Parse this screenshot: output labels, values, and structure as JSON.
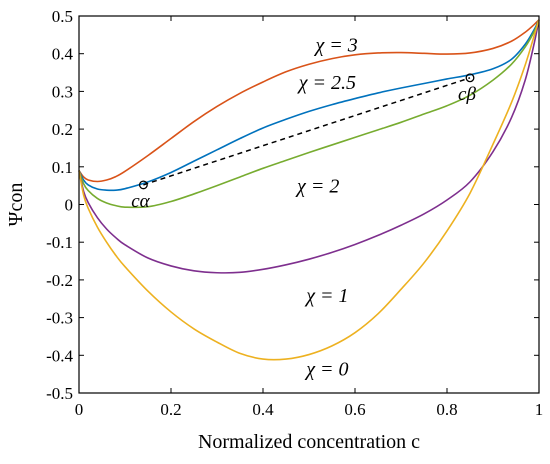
{
  "chart_data": {
    "type": "line",
    "title": "",
    "xlabel": "Normalized concentration c",
    "ylabel": "Ψcon",
    "xlim": [
      0,
      1
    ],
    "ylim": [
      -0.5,
      0.5
    ],
    "xticks": [
      0,
      0.2,
      0.4,
      0.6,
      0.8,
      1
    ],
    "xtick_labels": [
      "0",
      "0.2",
      "0.4",
      "0.6",
      "0.8",
      "1"
    ],
    "yticks": [
      -0.5,
      -0.4,
      -0.3,
      -0.2,
      -0.1,
      0,
      0.1,
      0.2,
      0.3,
      0.4,
      0.5
    ],
    "ytick_labels": [
      "-0.5",
      "-0.4",
      "-0.3",
      "-0.2",
      "-0.1",
      "0",
      "0.1",
      "0.2",
      "0.3",
      "0.4",
      "0.5"
    ],
    "grid": false,
    "series": [
      {
        "label": "χ = 3",
        "color": "#D95319",
        "x": [
          0.0001,
          0.01,
          0.02,
          0.04,
          0.06,
          0.08,
          0.1,
          0.15,
          0.2,
          0.25,
          0.3,
          0.35,
          0.4,
          0.45,
          0.5,
          0.55,
          0.6,
          0.65,
          0.7,
          0.75,
          0.8,
          0.85,
          0.9,
          0.94,
          0.97,
          0.99,
          0.9999
        ],
        "y": [
          0.09,
          0.073,
          0.065,
          0.061,
          0.065,
          0.074,
          0.088,
          0.13,
          0.175,
          0.22,
          0.26,
          0.295,
          0.325,
          0.352,
          0.372,
          0.387,
          0.397,
          0.402,
          0.403,
          0.401,
          0.399,
          0.402,
          0.414,
          0.433,
          0.457,
          0.478,
          0.49
        ]
      },
      {
        "label": "χ = 2.5",
        "color": "#0072BD",
        "x": [
          0.0001,
          0.01,
          0.02,
          0.04,
          0.06,
          0.08,
          0.1,
          0.15,
          0.2,
          0.25,
          0.3,
          0.35,
          0.4,
          0.45,
          0.5,
          0.55,
          0.6,
          0.65,
          0.7,
          0.75,
          0.8,
          0.85,
          0.9,
          0.94,
          0.97,
          0.99,
          0.9999
        ],
        "y": [
          0.09,
          0.065,
          0.052,
          0.041,
          0.038,
          0.038,
          0.042,
          0.06,
          0.085,
          0.115,
          0.145,
          0.175,
          0.203,
          0.226,
          0.247,
          0.265,
          0.281,
          0.296,
          0.309,
          0.321,
          0.333,
          0.344,
          0.36,
          0.385,
          0.425,
          0.465,
          0.49
        ]
      },
      {
        "label": "χ = 2",
        "color": "#77AC30",
        "x": [
          0.0001,
          0.01,
          0.02,
          0.04,
          0.06,
          0.08,
          0.1,
          0.15,
          0.2,
          0.25,
          0.3,
          0.35,
          0.4,
          0.45,
          0.5,
          0.55,
          0.6,
          0.65,
          0.7,
          0.75,
          0.8,
          0.85,
          0.9,
          0.94,
          0.97,
          0.99,
          0.9999
        ],
        "y": [
          0.09,
          0.055,
          0.037,
          0.016,
          0.004,
          -0.003,
          -0.007,
          -0.006,
          0.008,
          0.028,
          0.05,
          0.073,
          0.096,
          0.117,
          0.138,
          0.158,
          0.178,
          0.198,
          0.218,
          0.24,
          0.262,
          0.29,
          0.33,
          0.372,
          0.418,
          0.46,
          0.49
        ]
      },
      {
        "label": "χ = 1",
        "color": "#7E2F8E",
        "x": [
          0.0001,
          0.01,
          0.02,
          0.04,
          0.06,
          0.08,
          0.1,
          0.15,
          0.2,
          0.25,
          0.3,
          0.35,
          0.4,
          0.45,
          0.5,
          0.55,
          0.6,
          0.65,
          0.7,
          0.75,
          0.8,
          0.85,
          0.9,
          0.94,
          0.97,
          0.99,
          0.9999
        ],
        "y": [
          0.09,
          0.035,
          0.005,
          -0.035,
          -0.065,
          -0.088,
          -0.107,
          -0.142,
          -0.163,
          -0.176,
          -0.181,
          -0.18,
          -0.172,
          -0.16,
          -0.145,
          -0.127,
          -0.106,
          -0.082,
          -0.055,
          -0.025,
          0.012,
          0.06,
          0.14,
          0.23,
          0.33,
          0.43,
          0.49
        ]
      },
      {
        "label": "χ = 0",
        "color": "#EDB120",
        "x": [
          0.0001,
          0.01,
          0.02,
          0.04,
          0.06,
          0.08,
          0.1,
          0.15,
          0.2,
          0.25,
          0.3,
          0.35,
          0.4,
          0.45,
          0.5,
          0.55,
          0.6,
          0.65,
          0.7,
          0.75,
          0.8,
          0.85,
          0.9,
          0.94,
          0.97,
          0.99,
          0.9999
        ],
        "y": [
          0.09,
          0.025,
          -0.01,
          -0.06,
          -0.1,
          -0.135,
          -0.165,
          -0.23,
          -0.285,
          -0.33,
          -0.365,
          -0.395,
          -0.41,
          -0.41,
          -0.398,
          -0.375,
          -0.34,
          -0.29,
          -0.225,
          -0.155,
          -0.07,
          0.03,
          0.16,
          0.27,
          0.37,
          0.45,
          0.49
        ]
      }
    ],
    "tangent_line": {
      "x": [
        0.14,
        0.85
      ],
      "y": [
        0.052,
        0.336
      ],
      "style": "dashed",
      "color": "#000000"
    },
    "points": [
      {
        "name": "c_alpha",
        "label": "cα",
        "x": 0.14,
        "y": 0.052
      },
      {
        "name": "c_beta",
        "label": "cβ",
        "x": 0.85,
        "y": 0.336
      }
    ],
    "annotations": [
      {
        "text": "χ = 3",
        "x": 0.56,
        "y": 0.425
      },
      {
        "text": "χ = 2.5",
        "x": 0.54,
        "y": 0.325
      },
      {
        "text": "χ = 2",
        "x": 0.52,
        "y": 0.05
      },
      {
        "text": "χ = 1",
        "x": 0.54,
        "y": -0.24
      },
      {
        "text": "χ = 0",
        "x": 0.54,
        "y": -0.435
      }
    ]
  }
}
